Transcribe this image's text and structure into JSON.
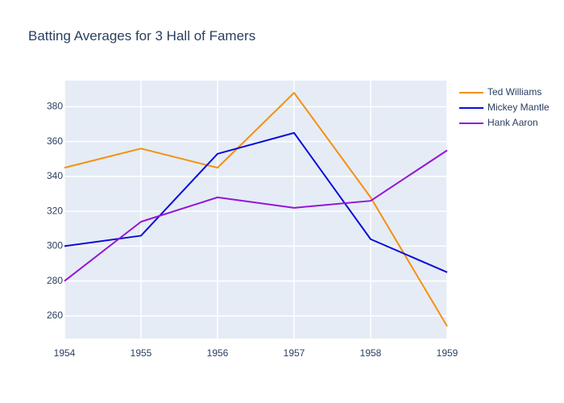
{
  "chart_data": {
    "type": "line",
    "title": "Batting Averages for 3 Hall of Famers",
    "xlabel": "",
    "ylabel": "",
    "x": [
      1954,
      1955,
      1956,
      1957,
      1958,
      1959
    ],
    "xlim": [
      1954,
      1959
    ],
    "ylim": [
      247,
      395
    ],
    "yticks": [
      260,
      280,
      300,
      320,
      340,
      360,
      380
    ],
    "grid": true,
    "legend_position": "top-right",
    "background": "#e5ecf6",
    "series": [
      {
        "name": "Ted Williams",
        "color": "#f5900f",
        "values": [
          345,
          356,
          345,
          388,
          328,
          254
        ]
      },
      {
        "name": "Mickey Mantle",
        "color": "#0d0dd6",
        "values": [
          300,
          306,
          353,
          365,
          304,
          285
        ]
      },
      {
        "name": "Hank Aaron",
        "color": "#9416d6",
        "values": [
          280,
          314,
          328,
          322,
          326,
          355
        ]
      }
    ]
  }
}
